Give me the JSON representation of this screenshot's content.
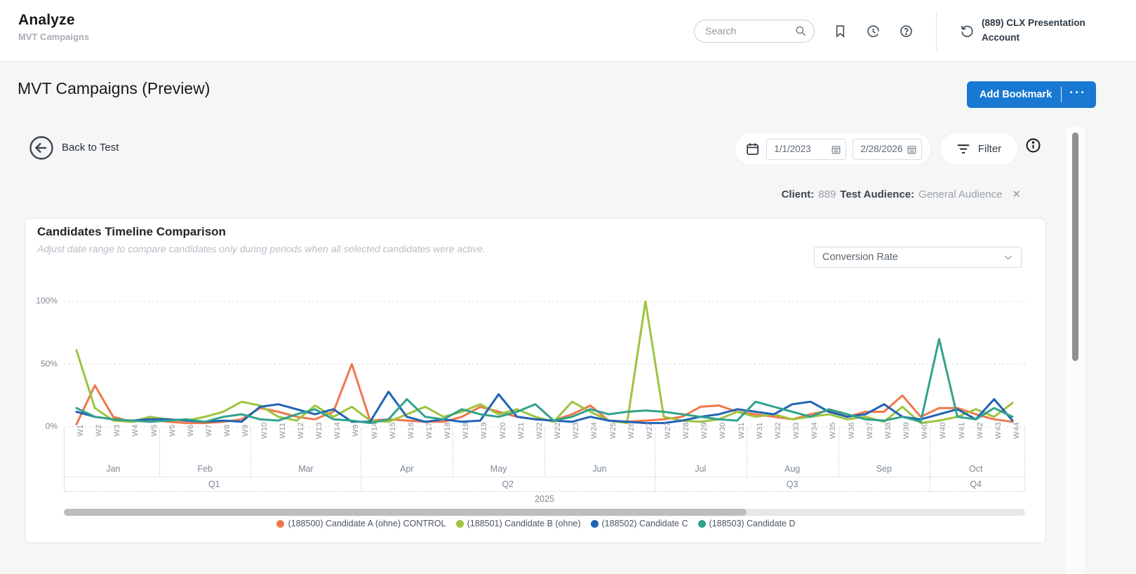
{
  "header": {
    "app_title": "Analyze",
    "app_subtitle": "MVT Campaigns",
    "search_placeholder": "Search",
    "account_name": "(889) CLX Presentation Account"
  },
  "page": {
    "title": "MVT Campaigns (Preview)",
    "add_bookmark_label": "Add Bookmark",
    "more_label": "···"
  },
  "toolbar": {
    "back_label": "Back to Test",
    "date_from": "1/1/2023",
    "date_to": "2/28/2026",
    "filter_label": "Filter"
  },
  "filter_chip": {
    "client_label": "Client:",
    "client_value": "889",
    "audience_label": "Test Audience:",
    "audience_value": "General Audience",
    "close_label": "✕"
  },
  "card": {
    "title": "Candidates Timeline Comparison",
    "subtitle": "Adjust date range to compare candidates only during periods when all selected candidates were active.",
    "metric_dropdown_value": "Conversion Rate"
  },
  "colors": {
    "accent_blue": "#1878D2",
    "series_orange": "#F0774A",
    "series_green": "#9CC43E",
    "series_blue": "#2063B6",
    "series_teal": "#31A28C"
  },
  "chart_data": {
    "type": "line",
    "title": "Candidates Timeline Comparison",
    "ylabel": "Conversion Rate",
    "ylim": [
      0,
      100
    ],
    "grid": "horizontal-dotted",
    "legend_position": "bottom-center",
    "yticks": [
      {
        "v": 0,
        "label": "0%"
      },
      {
        "v": 50,
        "label": "50%"
      },
      {
        "v": 100,
        "label": "100%"
      }
    ],
    "x_weeks": [
      "W1",
      "W2",
      "W3",
      "W4",
      "W5",
      "W5",
      "W6",
      "W7",
      "W8",
      "W9",
      "W10",
      "W11",
      "W12",
      "W13",
      "W14",
      "W9",
      "W14",
      "W15",
      "W16",
      "W17",
      "W18",
      "W18",
      "W19",
      "W20",
      "W21",
      "W22",
      "W22",
      "W23",
      "W24",
      "W25",
      "W26",
      "W27",
      "W27",
      "W28",
      "W29",
      "W30",
      "W31",
      "W31",
      "W32",
      "W33",
      "W34",
      "W35",
      "W36",
      "W37",
      "W38",
      "W39",
      "W40",
      "W40",
      "W41",
      "W42",
      "W43",
      "W44"
    ],
    "month_groups": [
      {
        "label": "Jan",
        "count": 5
      },
      {
        "label": "Feb",
        "count": 5
      },
      {
        "label": "Mar",
        "count": 6
      },
      {
        "label": "Apr",
        "count": 5
      },
      {
        "label": "May",
        "count": 5
      },
      {
        "label": "Jun",
        "count": 6
      },
      {
        "label": "Jul",
        "count": 5
      },
      {
        "label": "Aug",
        "count": 5
      },
      {
        "label": "Sep",
        "count": 5
      },
      {
        "label": "Oct",
        "count": 5
      }
    ],
    "quarter_groups": [
      {
        "label": "Q1",
        "count": 16
      },
      {
        "label": "Q2",
        "count": 16
      },
      {
        "label": "Q3",
        "count": 15
      },
      {
        "label": "Q4",
        "count": 5
      }
    ],
    "year_label": "2025",
    "series": [
      {
        "name": "(188500) Candidate A (ohne) CONTROL",
        "color": "#F0774A",
        "values": [
          2,
          33,
          8,
          4,
          6,
          4,
          3,
          3,
          4,
          6,
          15,
          12,
          8,
          6,
          12,
          50,
          5,
          6,
          5,
          4,
          4,
          8,
          16,
          12,
          8,
          6,
          5,
          10,
          17,
          5,
          4,
          5,
          6,
          8,
          16,
          17,
          12,
          10,
          8,
          6,
          10,
          13,
          8,
          12,
          12,
          25,
          8,
          15,
          15,
          10,
          6,
          4
        ]
      },
      {
        "name": "(188501) Candidate B (ohne)",
        "color": "#9CC43E",
        "values": [
          61,
          15,
          5,
          4,
          8,
          6,
          5,
          8,
          12,
          20,
          17,
          8,
          5,
          17,
          8,
          16,
          5,
          4,
          10,
          16,
          8,
          12,
          18,
          10,
          14,
          8,
          4,
          20,
          12,
          5,
          3,
          100,
          8,
          5,
          4,
          6,
          12,
          8,
          10,
          6,
          8,
          10,
          6,
          8,
          4,
          16,
          3,
          5,
          8,
          14,
          8,
          19
        ]
      },
      {
        "name": "(188502) Candidate C",
        "color": "#2063B6",
        "values": [
          12,
          8,
          6,
          5,
          6,
          6,
          5,
          4,
          5,
          4,
          16,
          18,
          14,
          10,
          14,
          4,
          4,
          28,
          8,
          4,
          6,
          4,
          5,
          26,
          8,
          6,
          5,
          4,
          8,
          5,
          4,
          3,
          3,
          5,
          8,
          10,
          14,
          12,
          10,
          18,
          20,
          12,
          8,
          10,
          18,
          8,
          6,
          10,
          14,
          6,
          22,
          5
        ]
      },
      {
        "name": "(188503) Candidate D",
        "color": "#31A28C",
        "values": [
          15,
          8,
          6,
          5,
          4,
          5,
          6,
          4,
          8,
          10,
          6,
          5,
          10,
          14,
          6,
          5,
          3,
          6,
          22,
          8,
          6,
          14,
          10,
          8,
          12,
          18,
          5,
          8,
          14,
          10,
          12,
          13,
          12,
          10,
          8,
          6,
          5,
          20,
          16,
          12,
          8,
          14,
          10,
          6,
          5,
          8,
          4,
          70,
          8,
          6,
          15,
          8
        ]
      }
    ]
  }
}
